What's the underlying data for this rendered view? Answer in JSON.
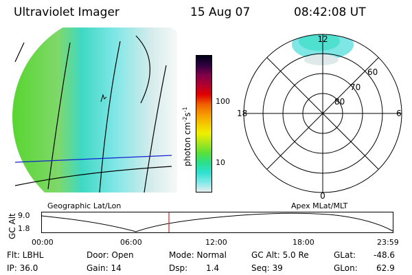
{
  "header": {
    "instrument": "Ultraviolet Imager",
    "date": "15 Aug 07",
    "time": "08:42:08 UT"
  },
  "colorbar": {
    "label": "photon cm",
    "label_sup1": "-2",
    "label_mid": "s",
    "label_sup2": "-1",
    "tick_100": "100",
    "tick_10": "10",
    "colors": [
      "#e6eef0",
      "#7fe8e6",
      "#2ee0d0",
      "#2adf8a",
      "#5be03a",
      "#a8e61e",
      "#f0f000",
      "#f5c800",
      "#f59800",
      "#f06000",
      "#e00000",
      "#b00030",
      "#80004a",
      "#300040",
      "#000018"
    ]
  },
  "labels": {
    "geographic": "Geographic Lat/Lon",
    "apex": "Apex MLat/MLT"
  },
  "polar": {
    "mlt_top": "12",
    "mlt_left": "18",
    "mlt_right": "6",
    "mlt_bottom": "0",
    "lat_60": "60",
    "lat_70": "70",
    "lat_80": "80"
  },
  "timeline": {
    "ylabel": "GC Alt",
    "tick_hi": "9.0",
    "tick_lo": "1.8",
    "times": [
      "00:00",
      "06:00",
      "12:00",
      "18:00",
      "23:59"
    ],
    "marker_time": "08:42"
  },
  "footer": {
    "flt": "Flt: LBHL",
    "ip": "IP: 36.0",
    "door": "Door: Open",
    "gain": "Gain: 14",
    "mode": "Mode: Normal",
    "dsp_label": "Dsp:",
    "dsp_value": "1.4",
    "gcalt": "GC Alt: 5.0 Re",
    "seq": "Seq: 39",
    "glat_label": "GLat:",
    "glat_value": "-48.6",
    "glon_label": "GLon:",
    "glon_value": "62.9"
  }
}
